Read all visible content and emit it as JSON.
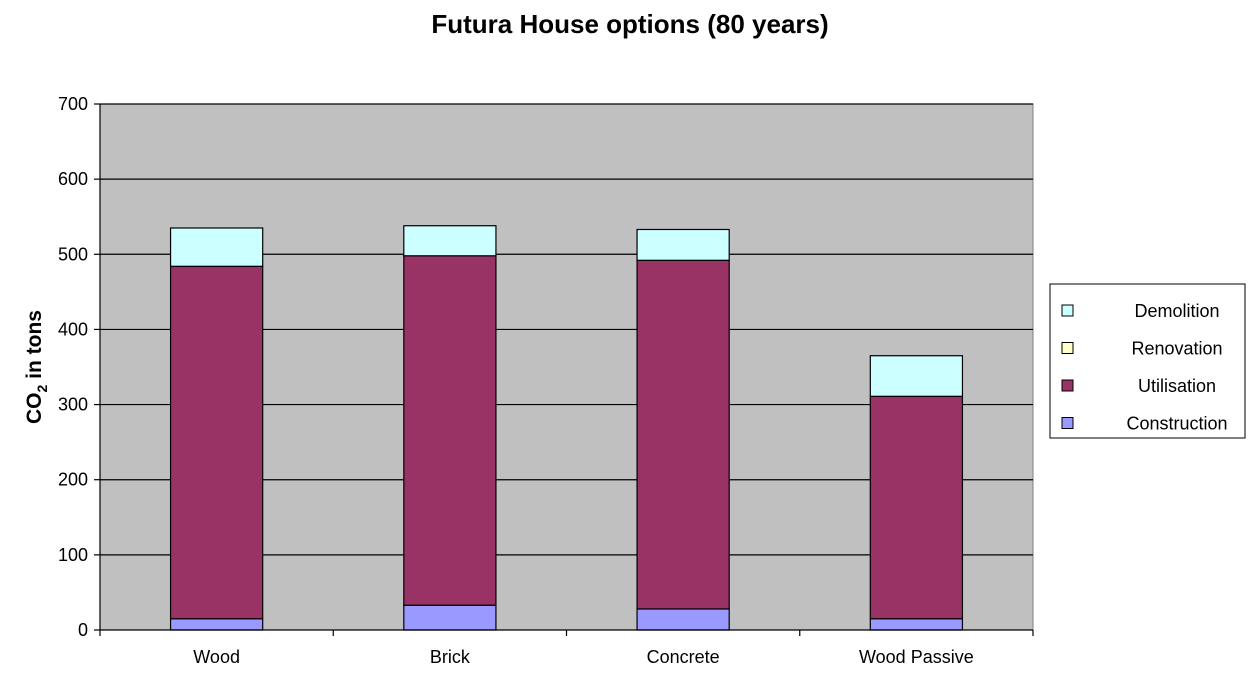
{
  "chart_data": {
    "type": "bar",
    "stacked": true,
    "title": "Futura House options (80 years)",
    "ylabel_main": "CO",
    "ylabel_sub": "2",
    "ylabel_rest": " in tons",
    "xlabel": "",
    "ylim": [
      0,
      700
    ],
    "yticks": [
      0,
      100,
      200,
      300,
      400,
      500,
      600,
      700
    ],
    "grid": true,
    "legend_position": "right",
    "plot_background": "#c0c0c0",
    "categories": [
      "Wood",
      "Brick",
      "Concrete",
      "Wood Passive"
    ],
    "series": [
      {
        "name": "Construction",
        "color": "#9999ff",
        "values": [
          15,
          33,
          28,
          15
        ]
      },
      {
        "name": "Utilisation",
        "color": "#993366",
        "values": [
          469,
          465,
          464,
          296
        ]
      },
      {
        "name": "Renovation",
        "color": "#ffffcc",
        "values": [
          0,
          0,
          0,
          0
        ]
      },
      {
        "name": "Demolition",
        "color": "#ccffff",
        "values": [
          51,
          40,
          41,
          54
        ]
      }
    ],
    "legend_order": [
      "Demolition",
      "Renovation",
      "Utilisation",
      "Construction"
    ]
  }
}
